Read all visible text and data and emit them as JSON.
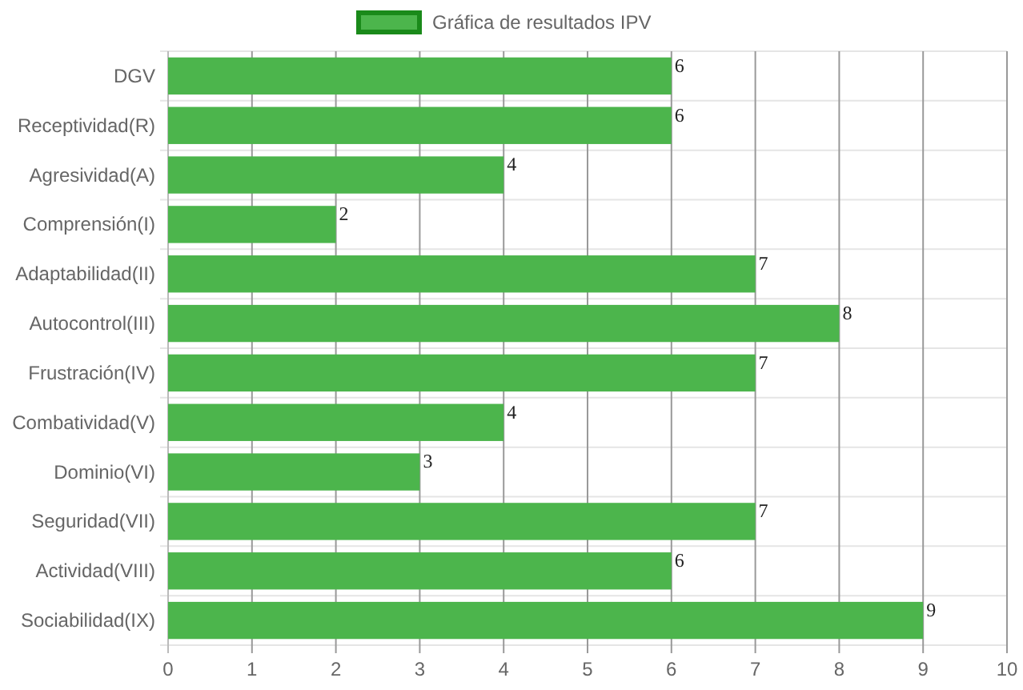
{
  "chart_data": {
    "type": "bar",
    "orientation": "horizontal",
    "categories": [
      "DGV",
      "Receptividad(R)",
      "Agresividad(A)",
      "Comprensión(I)",
      "Adaptabilidad(II)",
      "Autocontrol(III)",
      "Frustración(IV)",
      "Combatividad(V)",
      "Dominio(VI)",
      "Seguridad(VII)",
      "Actividad(VIII)",
      "Sociabilidad(IX)"
    ],
    "series": [
      {
        "name": "Gráfica de resultados IPV",
        "color": "#4cb54c",
        "values": [
          6,
          6,
          4,
          2,
          7,
          8,
          7,
          4,
          3,
          7,
          6,
          9
        ]
      }
    ],
    "xlim": [
      0,
      10
    ],
    "xticks": [
      0,
      1,
      2,
      3,
      4,
      5,
      6,
      7,
      8,
      9,
      10
    ],
    "grid": true,
    "legend": "top",
    "data_labels": true
  }
}
